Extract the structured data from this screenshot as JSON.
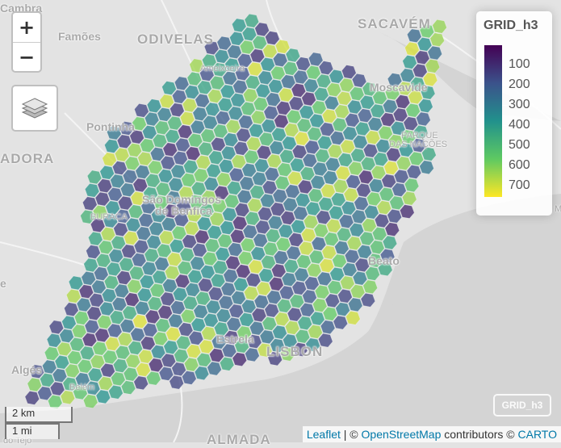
{
  "map": {
    "layer_name": "GRID_h3",
    "background_color": "#e3e3e3",
    "water_color": "#d4d4d4",
    "legend": {
      "title": "GRID_h3",
      "labels": [
        "100",
        "200",
        "300",
        "400",
        "500",
        "600",
        "700"
      ],
      "palette": [
        "#440154",
        "#3b528b",
        "#21918c",
        "#5ec962",
        "#fde725"
      ],
      "domain": [
        0,
        750
      ]
    },
    "place_labels": {
      "odivelas": "ODIVELAS",
      "sacavem": "SACAVÉM",
      "famoes": "Famões",
      "cambra": "Cambra",
      "amadora": "ADORA",
      "pontinha": "Pontinha",
      "sao_domingos": "São Domingos",
      "de_benfica": "de Benfica",
      "buraca": "BURACA",
      "ameixoeira": "Ameixoeira",
      "moscavide": "Moscavide",
      "parque": "PARQUE",
      "das_nacoes": "DAS NAÇÕES",
      "beato": "Beato",
      "estrela": "Estrela",
      "lisbon": "LISBON",
      "alges": "Algés",
      "belem": "Belém",
      "almada": "ALMADA",
      "left_e": "e",
      "right_m": "M",
      "bottom_left": "do Tejo"
    },
    "zoom": {
      "in_label": "+",
      "out_label": "−"
    },
    "layers_icon": "layers-icon",
    "mini_badge": "GRID_h3",
    "scale": {
      "km": "2 km",
      "mi": "1 mi"
    },
    "attribution": {
      "leaflet": "Leaflet",
      "sep": " | © ",
      "osm": "OpenStreetMap",
      "contributors": " contributors © ",
      "carto": "CARTO"
    }
  }
}
